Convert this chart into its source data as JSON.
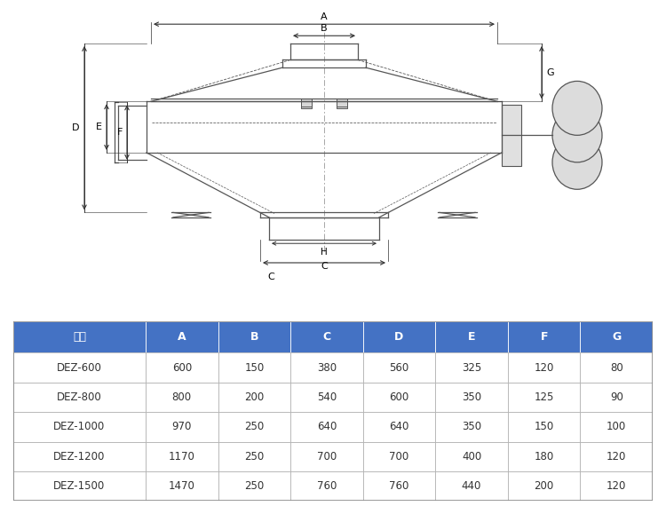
{
  "header": [
    "型号",
    "A",
    "B",
    "C",
    "D",
    "E",
    "F",
    "G"
  ],
  "rows": [
    [
      "DEZ-600",
      "600",
      "150",
      "380",
      "560",
      "325",
      "120",
      "80"
    ],
    [
      "DEZ-800",
      "800",
      "200",
      "540",
      "600",
      "350",
      "125",
      "90"
    ],
    [
      "DEZ-1000",
      "970",
      "250",
      "640",
      "640",
      "350",
      "150",
      "100"
    ],
    [
      "DEZ-1200",
      "1170",
      "250",
      "700",
      "700",
      "400",
      "180",
      "120"
    ],
    [
      "DEZ-1500",
      "1470",
      "250",
      "760",
      "760",
      "440",
      "200",
      "120"
    ]
  ],
  "header_bg": "#4472C4",
  "header_fg": "#FFFFFF",
  "row_bg": "#FFFFFF",
  "row_fg": "#333333",
  "border_color": "#AAAAAA",
  "diagram_line_color": "#555555",
  "background_color": "#FFFFFF",
  "dim_color": "#333333"
}
